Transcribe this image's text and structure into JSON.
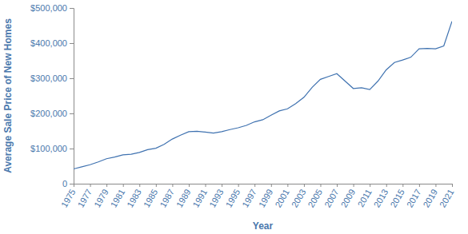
{
  "chart_data": {
    "type": "line",
    "x_label": "Year",
    "y_label": "Average Sale Price of New Homes",
    "x": [
      1975,
      1976,
      1977,
      1978,
      1979,
      1980,
      1981,
      1982,
      1983,
      1984,
      1985,
      1986,
      1987,
      1988,
      1989,
      1990,
      1991,
      1992,
      1993,
      1994,
      1995,
      1996,
      1997,
      1998,
      1999,
      2000,
      2001,
      2002,
      2003,
      2004,
      2005,
      2006,
      2007,
      2008,
      2009,
      2010,
      2011,
      2012,
      2013,
      2014,
      2015,
      2016,
      2017,
      2018,
      2019,
      2020,
      2021
    ],
    "values": [
      42000,
      48000,
      54000,
      62000,
      71000,
      76000,
      82000,
      84000,
      89000,
      97000,
      101000,
      112000,
      127000,
      138000,
      148000,
      149000,
      147000,
      144000,
      148000,
      154000,
      159000,
      166000,
      176000,
      182000,
      195000,
      207000,
      213000,
      228000,
      246000,
      274000,
      297000,
      305000,
      313000,
      292000,
      271000,
      273000,
      268000,
      292000,
      324000,
      345000,
      352000,
      360000,
      384000,
      385000,
      384000,
      392000,
      462000
    ],
    "color": "#3f72b0",
    "xlim": [
      1975,
      2021
    ],
    "xticks": [
      1975,
      1977,
      1979,
      1981,
      1983,
      1985,
      1987,
      1989,
      1991,
      1993,
      1995,
      1997,
      1999,
      2001,
      2003,
      2005,
      2007,
      2009,
      2011,
      2013,
      2015,
      2017,
      2019,
      2021
    ],
    "ylim": [
      0,
      500000
    ],
    "yticks": [
      0,
      {
        "value": 100000,
        "label": "$100,000"
      },
      {
        "value": 200000,
        "label": "$200,000"
      },
      {
        "value": 300000,
        "label": "$300,000"
      },
      {
        "value": 400000,
        "label": "$400,000"
      },
      {
        "value": 500000,
        "label": "$500,000"
      }
    ],
    "grid": false
  }
}
